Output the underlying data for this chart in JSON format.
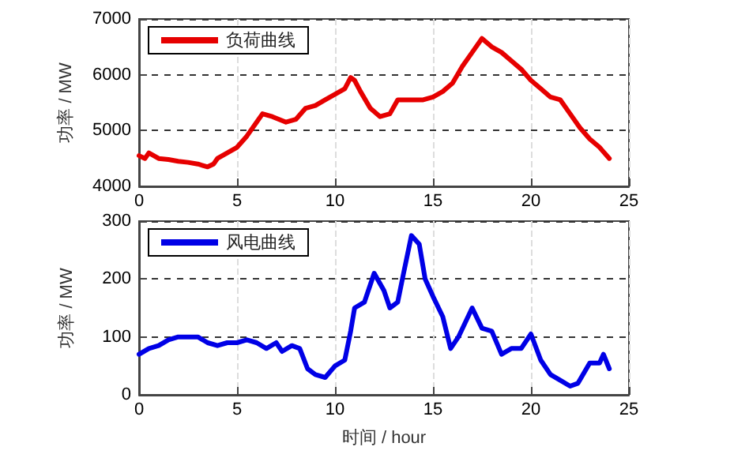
{
  "chart_data": [
    {
      "type": "line",
      "ylabel": "功率 / MW",
      "xlim": [
        0,
        25
      ],
      "xticks": [
        0,
        5,
        10,
        15,
        20,
        25
      ],
      "ylim": [
        4000,
        7000
      ],
      "yticks": [
        4000,
        5000,
        6000,
        7000
      ],
      "grid": true,
      "legend": "top left",
      "marker": "none",
      "line_style": "solid",
      "series": [
        {
          "name": "负荷曲线",
          "color": "#e60000",
          "x": [
            0,
            0.3,
            0.5,
            1,
            1.5,
            2,
            2.5,
            3,
            3.5,
            3.8,
            4,
            4.5,
            5,
            5.5,
            6,
            6.3,
            6.8,
            7.5,
            8,
            8.5,
            9,
            9.5,
            10,
            10.5,
            10.8,
            11,
            11.3,
            11.8,
            12.3,
            12.8,
            13.2,
            14,
            14.5,
            15,
            15.5,
            16,
            16.5,
            17,
            17.5,
            18,
            18.5,
            19,
            19.5,
            20,
            20.5,
            21,
            21.5,
            22,
            22.5,
            23,
            23.5,
            24
          ],
          "values": [
            4550,
            4500,
            4600,
            4500,
            4480,
            4450,
            4430,
            4400,
            4350,
            4400,
            4500,
            4600,
            4700,
            4900,
            5150,
            5300,
            5250,
            5150,
            5200,
            5400,
            5450,
            5550,
            5650,
            5750,
            5950,
            5900,
            5700,
            5400,
            5250,
            5300,
            5550,
            5550,
            5550,
            5600,
            5700,
            5850,
            6150,
            6400,
            6650,
            6500,
            6400,
            6250,
            6100,
            5900,
            5750,
            5600,
            5550,
            5300,
            5050,
            4850,
            4700,
            4500
          ]
        }
      ]
    },
    {
      "type": "line",
      "xlabel": "时间 / hour",
      "ylabel": "功率 / MW",
      "xlim": [
        0,
        25
      ],
      "xticks": [
        0,
        5,
        10,
        15,
        20,
        25
      ],
      "ylim": [
        0,
        300
      ],
      "yticks": [
        0,
        100,
        200,
        300
      ],
      "grid": true,
      "legend": "top left",
      "marker": "none",
      "line_style": "solid",
      "series": [
        {
          "name": "风电曲线",
          "color": "#0000e6",
          "x": [
            0,
            0.5,
            1,
            1.5,
            2,
            2.5,
            3,
            3.5,
            4,
            4.5,
            5,
            5.5,
            6,
            6.5,
            7,
            7.3,
            7.8,
            8.2,
            8.6,
            9,
            9.5,
            10,
            10.5,
            10.8,
            11,
            11.5,
            12,
            12.5,
            12.8,
            13.2,
            13.5,
            13.9,
            14.3,
            14.6,
            15,
            15.5,
            15.9,
            16.3,
            17,
            17.5,
            18,
            18.5,
            19,
            19.5,
            20,
            20.5,
            21,
            21.5,
            22,
            22.4,
            23,
            23.5,
            23.7,
            24
          ],
          "values": [
            70,
            80,
            85,
            95,
            100,
            100,
            100,
            90,
            85,
            90,
            90,
            95,
            90,
            80,
            90,
            75,
            85,
            80,
            45,
            35,
            30,
            50,
            60,
            110,
            150,
            160,
            210,
            180,
            150,
            160,
            210,
            275,
            260,
            200,
            170,
            135,
            80,
            100,
            150,
            115,
            110,
            70,
            80,
            80,
            105,
            60,
            35,
            25,
            15,
            20,
            55,
            55,
            70,
            45
          ]
        }
      ]
    }
  ]
}
